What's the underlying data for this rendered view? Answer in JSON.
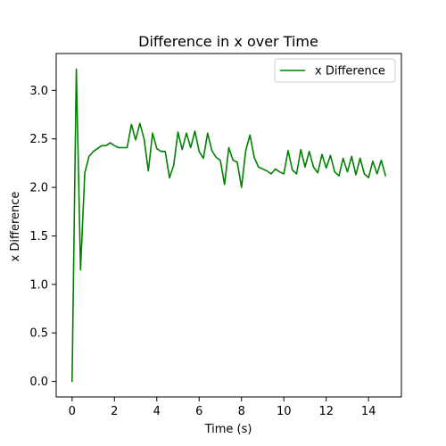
{
  "chart_data": {
    "type": "line",
    "title": "Difference in x over Time",
    "xlabel": "Time (s)",
    "ylabel": "x Difference",
    "xlim": [
      -0.75,
      15.55
    ],
    "ylim": [
      -0.16,
      3.38
    ],
    "xticks": [
      0,
      2,
      4,
      6,
      8,
      10,
      12,
      14
    ],
    "xtick_labels": [
      "0",
      "2",
      "4",
      "6",
      "8",
      "10",
      "12",
      "14"
    ],
    "yticks": [
      0.0,
      0.5,
      1.0,
      1.5,
      2.0,
      2.5,
      3.0
    ],
    "ytick_labels": [
      "0.0",
      "0.5",
      "1.0",
      "1.5",
      "2.0",
      "2.5",
      "3.0"
    ],
    "grid": false,
    "legend": {
      "placement": "top-right",
      "entries": [
        "x Difference"
      ]
    },
    "series": [
      {
        "name": "x Difference",
        "color": "#008000",
        "x": [
          0.0,
          0.2,
          0.4,
          0.6,
          0.8,
          1.0,
          1.2,
          1.4,
          1.6,
          1.8,
          2.0,
          2.2,
          2.4,
          2.6,
          2.8,
          3.0,
          3.2,
          3.4,
          3.6,
          3.8,
          4.0,
          4.2,
          4.4,
          4.6,
          4.8,
          5.0,
          5.2,
          5.4,
          5.6,
          5.8,
          6.0,
          6.2,
          6.4,
          6.6,
          6.8,
          7.0,
          7.2,
          7.4,
          7.6,
          7.8,
          8.0,
          8.2,
          8.4,
          8.6,
          8.8,
          9.0,
          9.2,
          9.4,
          9.6,
          9.8,
          10.0,
          10.2,
          10.4,
          10.6,
          10.8,
          11.0,
          11.2,
          11.4,
          11.6,
          11.8,
          12.0,
          12.2,
          12.4,
          12.6,
          12.8,
          13.0,
          13.2,
          13.4,
          13.6,
          13.8,
          14.0,
          14.2,
          14.4,
          14.6,
          14.8
        ],
        "y": [
          0.0,
          3.22,
          1.15,
          2.15,
          2.32,
          2.37,
          2.4,
          2.43,
          2.43,
          2.46,
          2.43,
          2.41,
          2.41,
          2.41,
          2.65,
          2.49,
          2.66,
          2.5,
          2.17,
          2.56,
          2.4,
          2.37,
          2.37,
          2.1,
          2.23,
          2.57,
          2.39,
          2.56,
          2.41,
          2.58,
          2.37,
          2.3,
          2.56,
          2.38,
          2.31,
          2.28,
          2.03,
          2.41,
          2.28,
          2.26,
          2.0,
          2.38,
          2.54,
          2.31,
          2.21,
          2.19,
          2.17,
          2.14,
          2.19,
          2.16,
          2.14,
          2.38,
          2.18,
          2.14,
          2.39,
          2.21,
          2.37,
          2.21,
          2.15,
          2.34,
          2.2,
          2.33,
          2.16,
          2.12,
          2.3,
          2.16,
          2.32,
          2.13,
          2.3,
          2.14,
          2.1,
          2.27,
          2.14,
          2.28,
          2.12
        ]
      }
    ]
  }
}
